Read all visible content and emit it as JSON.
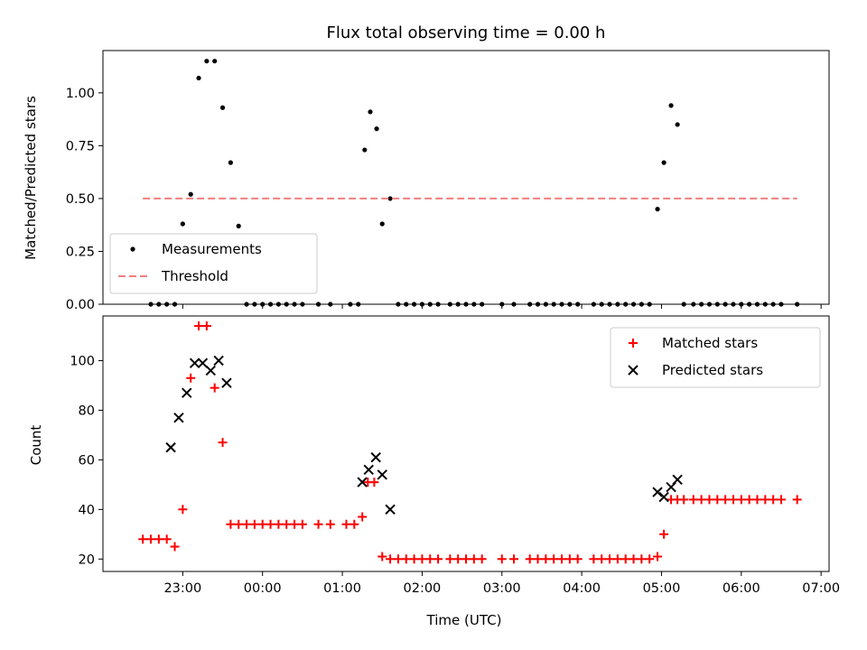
{
  "chart_data": [
    {
      "type": "scatter",
      "title": "Flux total observing time = 0.00 h",
      "xlabel": "",
      "ylabel": "Matched/Predicted stars",
      "ylim": [
        0,
        1.2
      ],
      "yticks": [
        "0.00",
        "0.25",
        "0.50",
        "0.75",
        "1.00"
      ],
      "ytick_values": [
        0,
        0.25,
        0.5,
        0.75,
        1.0
      ],
      "legend_position": "lower-left",
      "series": [
        {
          "name": "Measurements",
          "color": "#000000",
          "marker": "dot",
          "x": [
            -1.4,
            -1.3,
            -1.2,
            -1.1,
            -1.0,
            -0.9,
            -0.8,
            -0.7,
            -0.6,
            -0.5,
            -0.4,
            -0.3,
            -0.2,
            -0.1,
            0.0,
            0.1,
            0.2,
            0.3,
            0.4,
            0.5,
            0.7,
            0.85,
            1.1,
            1.2,
            1.28,
            1.35,
            1.43,
            1.5,
            1.6,
            1.7,
            1.8,
            1.9,
            2.0,
            2.1,
            2.2,
            2.35,
            2.45,
            2.55,
            2.65,
            2.75,
            3.0,
            3.15,
            3.35,
            3.45,
            3.55,
            3.65,
            3.75,
            3.85,
            3.95,
            4.15,
            4.25,
            4.35,
            4.45,
            4.55,
            4.65,
            4.75,
            4.85,
            4.95,
            5.03,
            5.12,
            5.2,
            5.28,
            5.4,
            5.5,
            5.6,
            5.7,
            5.8,
            5.9,
            6.0,
            6.1,
            6.2,
            6.3,
            6.4,
            6.5,
            6.7
          ],
          "y": [
            0,
            0,
            0,
            0,
            0.38,
            0.52,
            1.07,
            1.15,
            1.15,
            0.93,
            0.67,
            0.37,
            0,
            0,
            0,
            0,
            0,
            0,
            0,
            0,
            0,
            0,
            0,
            0,
            0.73,
            0.91,
            0.83,
            0.38,
            0.5,
            0,
            0,
            0,
            0,
            0,
            0,
            0,
            0,
            0,
            0,
            0,
            0,
            0,
            0,
            0,
            0,
            0,
            0,
            0,
            0,
            0,
            0,
            0,
            0,
            0,
            0,
            0,
            0,
            0.45,
            0.67,
            0.94,
            0.85,
            0,
            0,
            0,
            0,
            0,
            0,
            0,
            0,
            0,
            0,
            0,
            0,
            0,
            0
          ]
        },
        {
          "name": "Threshold",
          "color": "#f08080",
          "marker": "dashed-line",
          "x": [
            -1.5,
            6.7
          ],
          "y": [
            0.5,
            0.5
          ]
        }
      ]
    },
    {
      "type": "scatter",
      "title": "",
      "xlabel": "Time (UTC)",
      "ylabel": "Count",
      "ylim": [
        15,
        118
      ],
      "yticks": [
        "20",
        "40",
        "60",
        "80",
        "100"
      ],
      "ytick_values": [
        20,
        40,
        60,
        80,
        100
      ],
      "xlim": [
        -2.0,
        7.1
      ],
      "xticks": [
        "23:00",
        "00:00",
        "01:00",
        "02:00",
        "03:00",
        "04:00",
        "05:00",
        "06:00",
        "07:00"
      ],
      "xtick_values": [
        -1,
        0,
        1,
        2,
        3,
        4,
        5,
        6,
        7
      ],
      "legend_position": "upper-right",
      "series": [
        {
          "name": "Matched stars",
          "color": "#ff0000",
          "marker": "plus",
          "x": [
            -1.5,
            -1.4,
            -1.3,
            -1.2,
            -1.1,
            -1.0,
            -0.9,
            -0.8,
            -0.7,
            -0.6,
            -0.5,
            -0.4,
            -0.3,
            -0.2,
            -0.1,
            0.0,
            0.1,
            0.2,
            0.3,
            0.4,
            0.5,
            0.7,
            0.85,
            1.05,
            1.15,
            1.25,
            1.32,
            1.4,
            1.5,
            1.6,
            1.7,
            1.8,
            1.9,
            2.0,
            2.1,
            2.2,
            2.35,
            2.45,
            2.55,
            2.65,
            2.75,
            3.0,
            3.15,
            3.35,
            3.45,
            3.55,
            3.65,
            3.75,
            3.85,
            3.95,
            4.15,
            4.25,
            4.35,
            4.45,
            4.55,
            4.65,
            4.75,
            4.85,
            4.95,
            5.03,
            5.12,
            5.2,
            5.28,
            5.4,
            5.5,
            5.6,
            5.7,
            5.8,
            5.9,
            6.0,
            6.1,
            6.2,
            6.3,
            6.4,
            6.5,
            6.7
          ],
          "y": [
            28,
            28,
            28,
            28,
            25,
            40,
            93,
            114,
            114,
            89,
            67,
            34,
            34,
            34,
            34,
            34,
            34,
            34,
            34,
            34,
            34,
            34,
            34,
            34,
            34,
            37,
            51,
            51,
            21,
            20,
            20,
            20,
            20,
            20,
            20,
            20,
            20,
            20,
            20,
            20,
            20,
            20,
            20,
            20,
            20,
            20,
            20,
            20,
            20,
            20,
            20,
            20,
            20,
            20,
            20,
            20,
            20,
            20,
            21,
            30,
            44,
            44,
            44,
            44,
            44,
            44,
            44,
            44,
            44,
            44,
            44,
            44,
            44,
            44,
            44,
            44
          ]
        },
        {
          "name": "Predicted stars",
          "color": "#000000",
          "marker": "x",
          "x": [
            -1.15,
            -1.05,
            -0.95,
            -0.85,
            -0.75,
            -0.65,
            -0.55,
            -0.45,
            1.25,
            1.33,
            1.42,
            1.5,
            1.6,
            4.95,
            5.03,
            5.12,
            5.2
          ],
          "y": [
            65,
            77,
            87,
            99,
            99,
            96,
            100,
            91,
            51,
            56,
            61,
            54,
            40,
            47,
            45,
            49,
            52
          ]
        }
      ]
    }
  ]
}
